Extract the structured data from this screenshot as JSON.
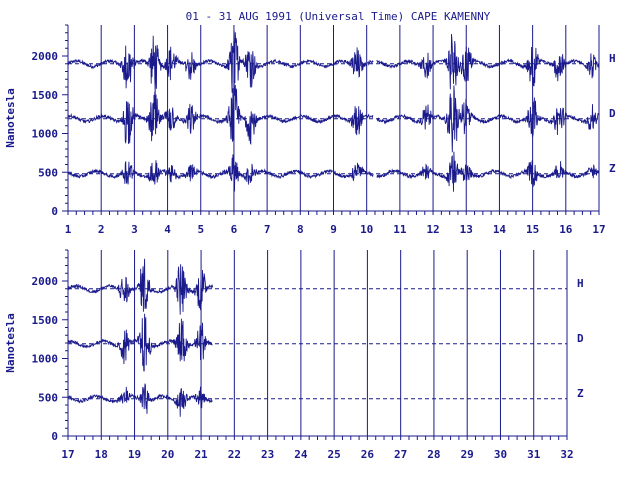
{
  "chart_data": {
    "type": "line",
    "title": "01 - 31 AUG 1991 (Universal Time) CAPE KAMENNY",
    "ylabel": "Nanotesla",
    "ylim": [
      0,
      2400
    ],
    "yticks": [
      0,
      500,
      1000,
      1500,
      2000
    ],
    "grid": "vertical lines at each day; dashed baselines per component",
    "panels": [
      {
        "xlim": [
          1,
          17
        ],
        "xticks": [
          1,
          2,
          3,
          4,
          5,
          6,
          7,
          8,
          9,
          10,
          11,
          12,
          13,
          14,
          15,
          16,
          17
        ],
        "data_gap": [
          10.2,
          10.3
        ],
        "data_end": 17
      },
      {
        "xlim": [
          17,
          32
        ],
        "xticks": [
          17,
          18,
          19,
          20,
          21,
          22,
          23,
          24,
          25,
          26,
          27,
          28,
          29,
          30,
          31,
          32
        ],
        "data_end": 21.35
      }
    ],
    "series": [
      {
        "name": "H",
        "baseline": 1900,
        "color": "#1a1a8c"
      },
      {
        "name": "D",
        "baseline": 1190,
        "color": "#1a1a8c"
      },
      {
        "name": "Z",
        "baseline": 480,
        "color": "#1a1a8c"
      }
    ],
    "disturbances": [
      {
        "day": 2.8,
        "amp": 380
      },
      {
        "day": 3.6,
        "amp": 420
      },
      {
        "day": 4.1,
        "amp": 250
      },
      {
        "day": 4.7,
        "amp": 220
      },
      {
        "day": 6.0,
        "amp": 480
      },
      {
        "day": 6.5,
        "amp": 300
      },
      {
        "day": 9.7,
        "amp": 260
      },
      {
        "day": 11.8,
        "amp": 200
      },
      {
        "day": 12.6,
        "amp": 520
      },
      {
        "day": 13.0,
        "amp": 300
      },
      {
        "day": 15.0,
        "amp": 330
      },
      {
        "day": 15.8,
        "amp": 250
      },
      {
        "day": 16.8,
        "amp": 180
      },
      {
        "day": 18.7,
        "amp": 240
      },
      {
        "day": 19.3,
        "amp": 420
      },
      {
        "day": 20.4,
        "amp": 380
      },
      {
        "day": 21.0,
        "amp": 300
      }
    ]
  }
}
